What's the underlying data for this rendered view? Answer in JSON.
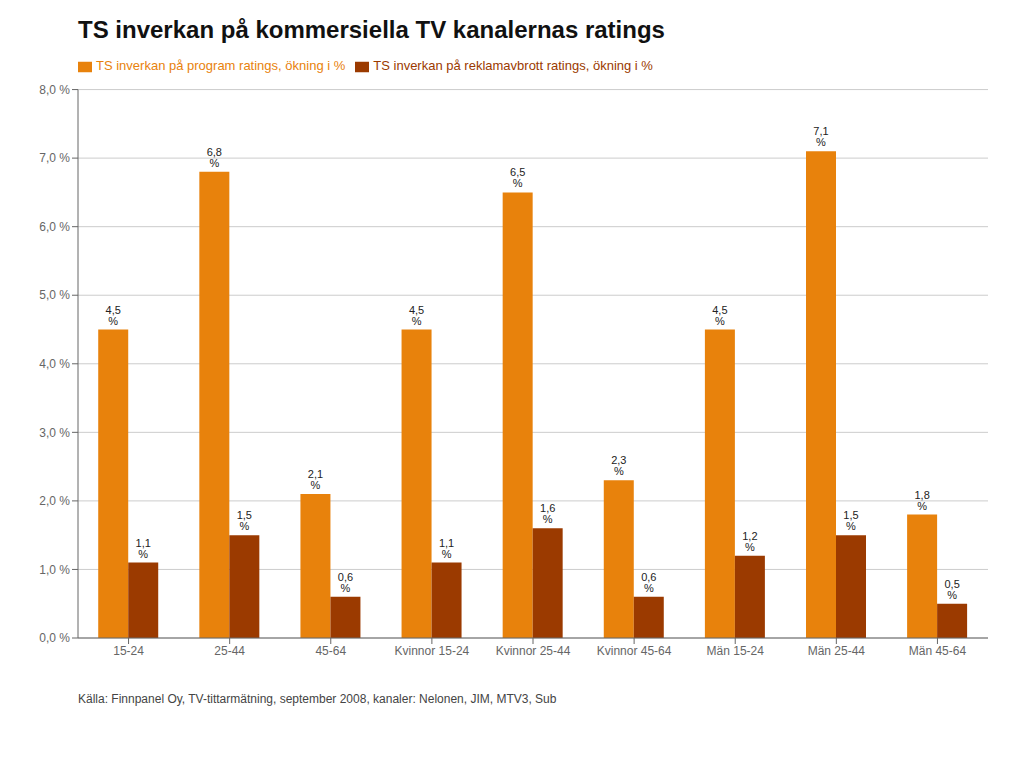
{
  "chart_data": {
    "type": "bar",
    "title": "TS inverkan på kommersiella TV kanalernas ratings",
    "categories": [
      "15-24",
      "25-44",
      "45-64",
      "Kvinnor 15-24",
      "Kvinnor 25-44",
      "Kvinnor 45-64",
      "Män 15-24",
      "Män 25-44",
      "Män 45-64"
    ],
    "series": [
      {
        "name": "TS inverkan på program ratings, ökning i %",
        "color": "#E8820C",
        "values": [
          4.5,
          6.8,
          2.1,
          4.5,
          6.5,
          2.3,
          4.5,
          7.1,
          1.8
        ],
        "value_labels": [
          "4,5 %",
          "6,8 %",
          "2,1 %",
          "4,5 %",
          "6,5 %",
          "2,3 %",
          "4,5 %",
          "7,1 %",
          "1,8 %"
        ]
      },
      {
        "name": "TS inverkan på reklamavbrott ratings, ökning i %",
        "color": "#9B3A00",
        "values": [
          1.1,
          1.5,
          0.6,
          1.1,
          1.6,
          0.6,
          1.2,
          1.5,
          0.5
        ],
        "value_labels": [
          "1,1 %",
          "1,5 %",
          "0,6 %",
          "1,1 %",
          "1,6 %",
          "0,6 %",
          "1,2 %",
          "1,5 %",
          "0,5 %"
        ]
      }
    ],
    "ylim": [
      0,
      8.0
    ],
    "yticks": [
      {
        "value": 0.0,
        "label": "0,0 %"
      },
      {
        "value": 1.0,
        "label": "1,0 %"
      },
      {
        "value": 2.0,
        "label": "2,0 %"
      },
      {
        "value": 3.0,
        "label": "3,0 %"
      },
      {
        "value": 4.0,
        "label": "4,0 %"
      },
      {
        "value": 5.0,
        "label": "5,0 %"
      },
      {
        "value": 6.0,
        "label": "6,0 %"
      },
      {
        "value": 7.0,
        "label": "7,0 %"
      },
      {
        "value": 8.0,
        "label": "8,0 %"
      }
    ],
    "grid": true,
    "legend": "top",
    "data_labels": true,
    "footnote": "Källa: Finnpanel Oy, TV-tittarmätning, september 2008, kanaler: Nelonen, JIM, MTV3, Sub"
  }
}
